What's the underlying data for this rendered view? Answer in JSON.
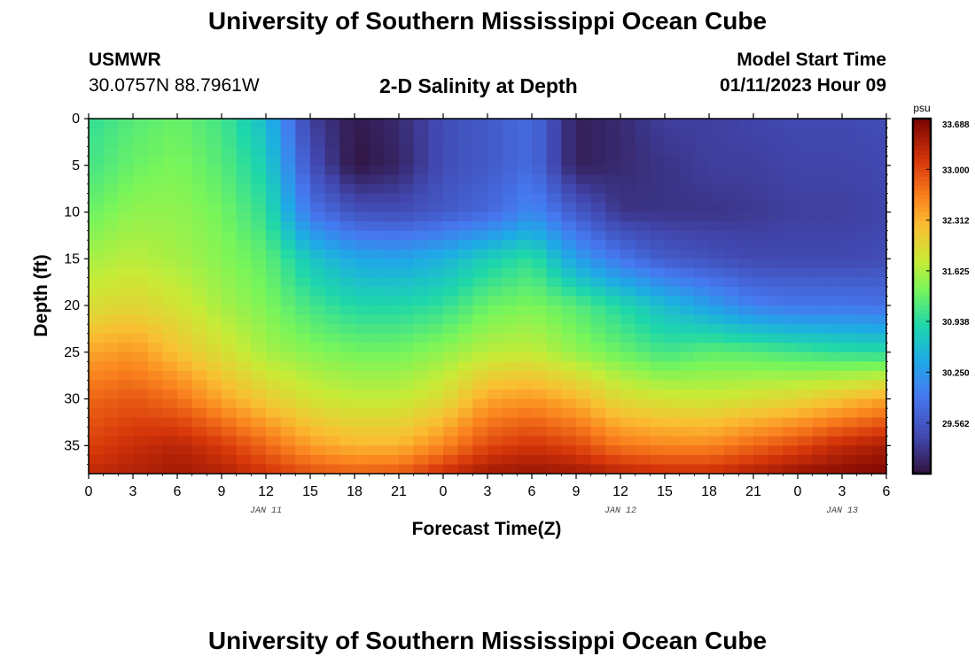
{
  "header": {
    "main_title": "University of Southern Mississippi Ocean Cube",
    "station_name": "USMWR",
    "station_coords": "30.0757N  88.7961W",
    "chart_title": "2-D Salinity at Depth",
    "model_start_label": "Model Start Time",
    "model_start_value": "01/11/2023 Hour 09"
  },
  "footer": {
    "repeat_title": "University of Southern Mississippi Ocean Cube"
  },
  "chart_data": {
    "type": "heatmap",
    "title": "2-D Salinity at Depth",
    "xlabel": "Forecast Time(Z)",
    "ylabel": "Depth (ft)",
    "x_tick_labels": [
      "0",
      "3",
      "6",
      "9",
      "12",
      "15",
      "18",
      "21",
      "0",
      "3",
      "6",
      "9",
      "12",
      "15",
      "18",
      "21",
      "0",
      "3",
      "6"
    ],
    "x_date_labels": [
      {
        "label": "JAN 11",
        "tick_index": 4
      },
      {
        "label": "JAN 12",
        "tick_index": 12
      },
      {
        "label": "JAN 13",
        "tick_index": 17
      }
    ],
    "y_ticks": [
      0,
      5,
      10,
      15,
      20,
      25,
      30,
      35
    ],
    "ylim": [
      0,
      38
    ],
    "xlim_hours": [
      0,
      54
    ],
    "colorbar": {
      "unit": "psu",
      "min": 28.875,
      "max": 33.688,
      "tick_values": [
        33.688,
        33.0,
        32.312,
        31.625,
        30.938,
        30.25,
        29.562
      ],
      "tick_labels": [
        "33.688",
        "33.000",
        "32.312",
        "31.625",
        "30.938",
        "30.250",
        "29.562"
      ]
    },
    "grid": false,
    "hours": [
      0,
      3,
      6,
      9,
      12,
      15,
      18,
      21,
      24,
      27,
      30,
      33,
      36,
      39,
      42,
      45,
      48,
      51,
      54
    ],
    "depths_ft": [
      0,
      5,
      10,
      15,
      20,
      25,
      30,
      35,
      38
    ],
    "salinity_psu": [
      [
        31.0,
        31.2,
        31.3,
        31.1,
        30.6,
        29.3,
        28.95,
        29.1,
        29.45,
        29.6,
        29.8,
        29.0,
        29.1,
        29.3,
        29.3,
        29.35,
        29.4,
        29.4,
        29.45
      ],
      [
        31.1,
        31.3,
        31.4,
        31.2,
        30.8,
        29.5,
        28.9,
        29.05,
        29.45,
        29.6,
        29.8,
        29.0,
        29.1,
        29.2,
        29.3,
        29.3,
        29.35,
        29.35,
        29.4
      ],
      [
        31.3,
        31.5,
        31.5,
        31.35,
        31.0,
        29.9,
        29.5,
        29.45,
        29.6,
        29.75,
        30.1,
        29.6,
        29.2,
        29.2,
        29.2,
        29.25,
        29.3,
        29.3,
        29.35
      ],
      [
        31.6,
        31.7,
        31.6,
        31.45,
        31.25,
        30.7,
        30.4,
        30.35,
        30.5,
        30.8,
        31.0,
        30.3,
        29.9,
        29.6,
        29.5,
        29.4,
        29.4,
        29.4,
        29.45
      ],
      [
        31.9,
        32.0,
        31.85,
        31.6,
        31.4,
        31.1,
        30.9,
        30.9,
        31.0,
        31.3,
        31.4,
        31.2,
        30.9,
        30.6,
        30.3,
        30.0,
        29.9,
        29.9,
        29.85
      ],
      [
        32.4,
        32.5,
        32.2,
        31.9,
        31.6,
        31.45,
        31.35,
        31.35,
        31.5,
        31.7,
        31.75,
        31.5,
        31.3,
        31.1,
        31.25,
        31.2,
        31.1,
        31.0,
        30.95
      ],
      [
        32.8,
        32.9,
        32.75,
        32.4,
        32.1,
        31.85,
        31.75,
        31.75,
        31.95,
        32.4,
        32.5,
        32.3,
        31.95,
        31.85,
        31.8,
        31.9,
        32.0,
        32.2,
        32.4
      ],
      [
        33.05,
        33.2,
        33.3,
        33.1,
        32.8,
        32.45,
        32.3,
        32.3,
        32.6,
        33.0,
        33.15,
        33.0,
        32.7,
        32.6,
        32.6,
        32.8,
        33.0,
        33.25,
        33.4
      ],
      [
        33.25,
        33.35,
        33.45,
        33.35,
        33.15,
        32.95,
        32.85,
        32.9,
        33.2,
        33.45,
        33.5,
        33.45,
        33.3,
        33.2,
        33.2,
        33.35,
        33.5,
        33.6,
        33.65
      ]
    ]
  }
}
